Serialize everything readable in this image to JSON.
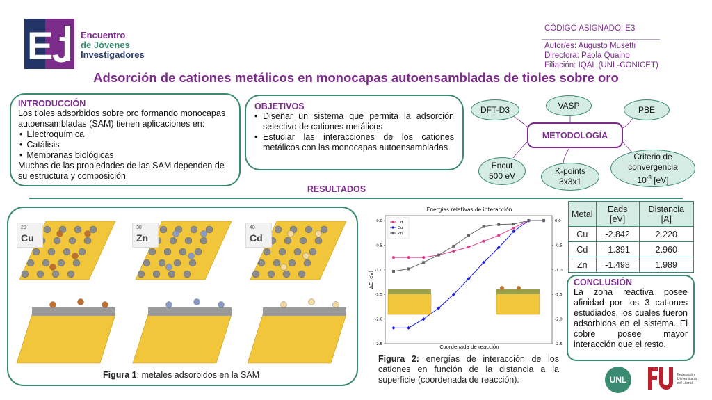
{
  "logo": {
    "line1": "Encuentro",
    "line2": "de Jóvenes",
    "line3": "Investigadores"
  },
  "meta": {
    "code": "CÓDIGO ASIGNADO: E3",
    "authors": "Autor/es: Augusto Musetti",
    "director": "Directora: Paola Quaino",
    "affiliation": "Filiación: IQAL (UNL-CONICET)"
  },
  "title": "Adsorción de cationes metálicos en monocapas autoensambladas de tioles sobre oro",
  "intro": {
    "heading": "INTRODUCCIÓN",
    "text1": "Los tioles adsorbidos sobre oro formando monocapas autoensambladas (SAM) tienen aplicaciones en:",
    "items": [
      "Electroquímica",
      "Catálisis",
      "Membranas biológicas"
    ],
    "text2": "Muchas de las propiedades de las SAM dependen de su estructura y composición"
  },
  "objectives": {
    "heading": "OBJETIVOS",
    "items": [
      "Diseñar un sistema que permita la adsorción selectivo  de cationes metálicos",
      "Estudiar las interacciones de los cationes metálicos con las monocapas autoensambladas"
    ]
  },
  "methodology": {
    "title": "METODOLOGÍA",
    "dft": "DFT-D3",
    "vasp": "VASP",
    "pbe": "PBE",
    "encut_l1": "Encut",
    "encut_l2": "500 eV",
    "kpoints_l1": "K-points",
    "kpoints_l2": "3x3x1",
    "crit_l1": "Criterio de",
    "crit_l2": "convergencia",
    "crit_l3": "10",
    "crit_exp": "-3",
    "crit_unit": " [eV]"
  },
  "results": {
    "heading": "RESULTADOS"
  },
  "figure1": {
    "caption_bold": "Figura 1",
    "caption_rest": ": metales adsorbidos en la SAM",
    "elements": [
      {
        "z": "29",
        "symbol": "Cu",
        "color": "#c0702a"
      },
      {
        "z": "30",
        "symbol": "Zn",
        "color": "#8a9bc9"
      },
      {
        "z": "48",
        "symbol": "Cd",
        "color": "#f3d9a0"
      }
    ]
  },
  "figure2": {
    "caption_bold": "Figura 2:",
    "caption_rest": " energías de interacción de los cationes en función de la distancia a la superficie (coordenada de reacción)."
  },
  "chart_data": {
    "type": "line",
    "title": "Energías relativas de interacción",
    "xlabel": "Coordenada de reacción",
    "ylabel": "ΔE (eV)",
    "ylim": [
      -2.5,
      0.1
    ],
    "yticks": [
      "0.0",
      "-0.5",
      "-1.0",
      "-1.5",
      "-2.0",
      "-2.5"
    ],
    "legend_position": "top-left",
    "series": [
      {
        "name": "Cd",
        "color": "#e0398c",
        "marker": "o",
        "values": [
          -0.75,
          -0.75,
          -0.75,
          -0.7,
          -0.62,
          -0.54,
          -0.42,
          -0.3,
          -0.15,
          0.0,
          0.0
        ]
      },
      {
        "name": "Cu",
        "color": "#1a1ae6",
        "marker": "d",
        "values": [
          -2.18,
          -2.18,
          -2.0,
          -1.78,
          -1.5,
          -1.18,
          -0.85,
          -0.55,
          -0.22,
          0.0,
          0.0
        ]
      },
      {
        "name": "Zn",
        "color": "#666666",
        "marker": "s",
        "values": [
          -1.03,
          -0.98,
          -0.85,
          -0.7,
          -0.52,
          -0.3,
          -0.12,
          -0.08,
          -0.07,
          0.0,
          0.0
        ]
      }
    ]
  },
  "table": {
    "headers": [
      "Metal",
      "Eads [eV]",
      "Distancia [A]"
    ],
    "rows": [
      [
        "Cu",
        "-2.842",
        "2.220"
      ],
      [
        "Cd",
        "-1.391",
        "2.960"
      ],
      [
        "Zn",
        "-1.498",
        "1.989"
      ]
    ]
  },
  "conclusion": {
    "heading": "CONCLUSIÓN",
    "text": "La zona reactiva posee afinidad por los 3 cationes estudiados, los cuales fueron adsorbidos en el sistema. El cobre posee mayor interacción que el resto."
  },
  "logos": {
    "unl": "UNL",
    "fue_l1": "Federación",
    "fue_l2": "Universitaria",
    "fue_l3": "del Litoral"
  }
}
